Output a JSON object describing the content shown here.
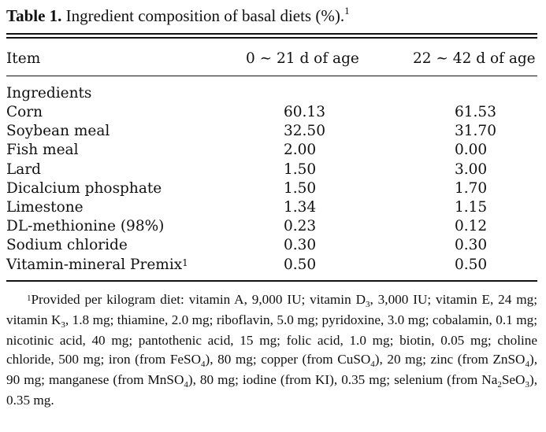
{
  "caption": {
    "label": "Table 1.",
    "text": " Ingredient composition of basal diets (%).",
    "marker": "1"
  },
  "header": {
    "item": "Item",
    "col1": "0 ∼ 21 d of age",
    "col2": "22 ∼ 42 d of age"
  },
  "section": "Ingredients",
  "rows": [
    {
      "name": "Corn",
      "v1": "60.13",
      "v2": "61.53"
    },
    {
      "name": "Soybean meal",
      "v1": "32.50",
      "v2": "31.70"
    },
    {
      "name": "Fish meal",
      "v1": "2.00",
      "v2": "0.00"
    },
    {
      "name": "Lard",
      "v1": "1.50",
      "v2": "3.00"
    },
    {
      "name": "Dicalcium phosphate",
      "v1": "1.50",
      "v2": "1.70"
    },
    {
      "name": "Limestone",
      "v1": "1.34",
      "v2": "1.15"
    },
    {
      "name": "DL-methionine (98%)",
      "v1": "0.23",
      "v2": "0.12"
    },
    {
      "name": "Sodium chloride",
      "v1": "0.30",
      "v2": "0.30"
    },
    {
      "name": "Vitamin-mineral Premix",
      "v1": "0.50",
      "v2": "0.50",
      "marker": "1"
    }
  ],
  "footnote": {
    "marker": "1",
    "s1": "Provided per kilogram diet: vitamin A, 9,000 IU; vitamin D",
    "sub1": "3",
    "s2": ", 3,000 IU; vitamin E, 24 mg; vitamin K",
    "sub2": "3",
    "s3": ", 1.8 mg; thiamine, 2.0 mg; riboflavin, 5.0 mg; pyridoxine, 3.0 mg; cobalamin, 0.1 mg; nicotinic acid, 40 mg; pantothenic acid, 15 mg; folic acid, 1.0 mg; biotin, 0.05 mg; choline chloride, 500 mg; iron (from FeSO",
    "sub3": "4",
    "s4": "), 80 mg; copper (from CuSO",
    "sub4": "4",
    "s5": "), 20 mg; zinc (from ZnSO",
    "sub5": "4",
    "s6": "), 90 mg; manganese (from MnSO",
    "sub6": "4",
    "s7": "), 80 mg; iodine (from KI), 0.35 mg; selenium (from Na",
    "sub7": "2",
    "s8": "SeO",
    "sub8": "3",
    "s9": "), 0.35 mg."
  }
}
